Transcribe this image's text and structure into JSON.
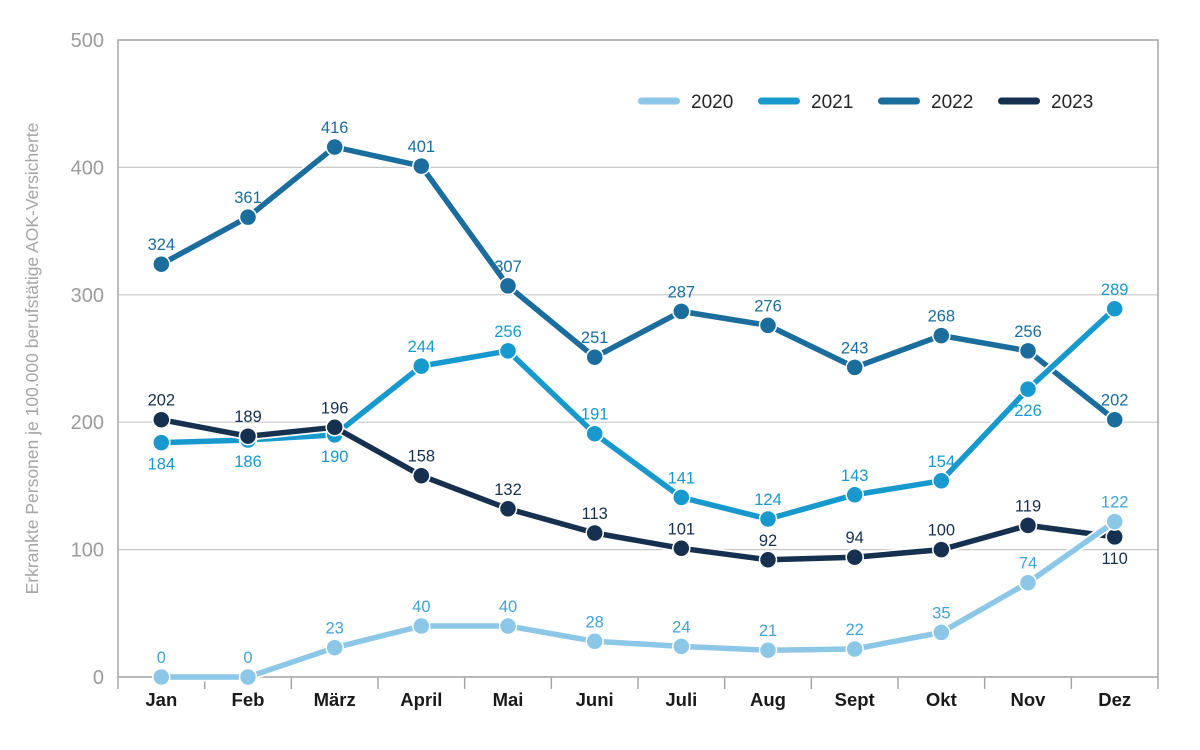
{
  "chart_data": {
    "type": "line",
    "title": "",
    "xlabel": "",
    "ylabel": "Erkrankte Personen je 100.000 berufstätige AOK-Versicherte",
    "categories": [
      "Jan",
      "Feb",
      "März",
      "April",
      "Mai",
      "Juni",
      "Juli",
      "Aug",
      "Sept",
      "Okt",
      "Nov",
      "Dez"
    ],
    "ylim": [
      0,
      500
    ],
    "yticks": [
      0,
      100,
      200,
      300,
      400,
      500
    ],
    "grid": true,
    "legend_position": "top-right-inside",
    "legend_order": [
      "2020",
      "2021",
      "2022",
      "2023"
    ],
    "draw_order": [
      "2022",
      "2021",
      "2023",
      "2020"
    ],
    "series": [
      {
        "name": "2020",
        "color": "#8CC7E8",
        "label_color": "#3FA3D3",
        "values": [
          0,
          0,
          23,
          40,
          40,
          28,
          24,
          21,
          22,
          35,
          74,
          122
        ],
        "label_side": [
          "above",
          "above",
          "above",
          "above",
          "above",
          "above",
          "above",
          "above",
          "above",
          "above",
          "above",
          "above"
        ]
      },
      {
        "name": "2021",
        "color": "#1899CD",
        "label_color": "#1899CD",
        "values": [
          184,
          186,
          190,
          244,
          256,
          191,
          141,
          124,
          143,
          154,
          226,
          289
        ],
        "label_side": [
          "below",
          "below",
          "below",
          "above",
          "above",
          "above",
          "above",
          "above",
          "above",
          "above",
          "below",
          "above"
        ]
      },
      {
        "name": "2022",
        "color": "#1A6D9D",
        "label_color": "#1A6D9D",
        "values": [
          324,
          361,
          416,
          401,
          307,
          251,
          287,
          276,
          243,
          268,
          256,
          202
        ],
        "label_side": [
          "above",
          "above",
          "above",
          "above",
          "above",
          "above",
          "above",
          "above",
          "above",
          "above",
          "above",
          "above"
        ]
      },
      {
        "name": "2023",
        "color": "#16304F",
        "label_color": "#16304F",
        "values": [
          202,
          189,
          196,
          158,
          132,
          113,
          101,
          92,
          94,
          100,
          119,
          110
        ],
        "label_side": [
          "above",
          "above",
          "above",
          "above",
          "above",
          "above",
          "above",
          "above",
          "above",
          "above",
          "above",
          "below"
        ]
      }
    ],
    "colors": {
      "background": "#FFFFFF",
      "plot_border": "#A6A6A6",
      "gridline": "#C8C8C8",
      "y_tick_label": "#9B9B9B",
      "category_label": "#1A1A1A",
      "legend_text": "#262626",
      "ylabel_text": "#A6A6A6"
    }
  }
}
